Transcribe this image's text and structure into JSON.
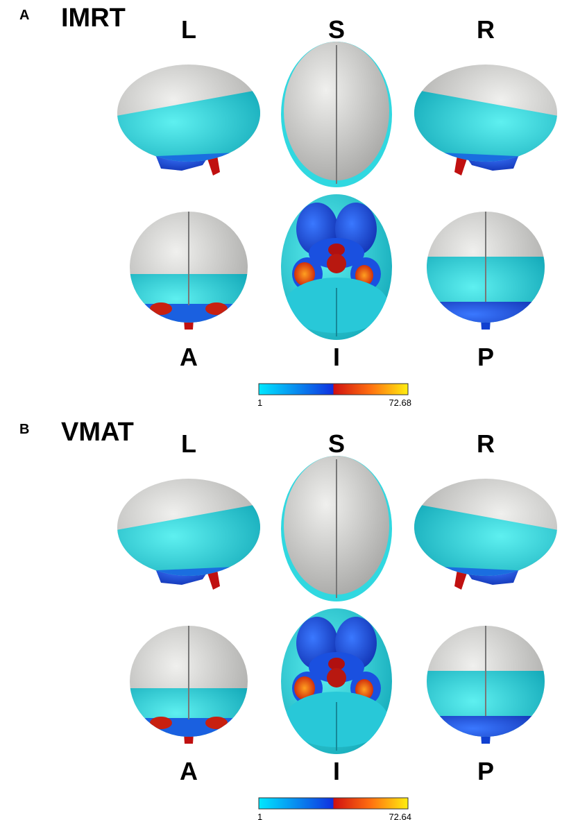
{
  "panels": [
    {
      "label": "A",
      "title": "IMRT",
      "top_views": [
        "L",
        "S",
        "R"
      ],
      "bottom_views": [
        "A",
        "I",
        "P"
      ],
      "colorbar": {
        "min": 1,
        "max": 72.68
      }
    },
    {
      "label": "B",
      "title": "VMAT",
      "top_views": [
        "L",
        "S",
        "R"
      ],
      "bottom_views": [
        "A",
        "I",
        "P"
      ],
      "colorbar": {
        "min": 1,
        "max": 72.64
      }
    }
  ]
}
